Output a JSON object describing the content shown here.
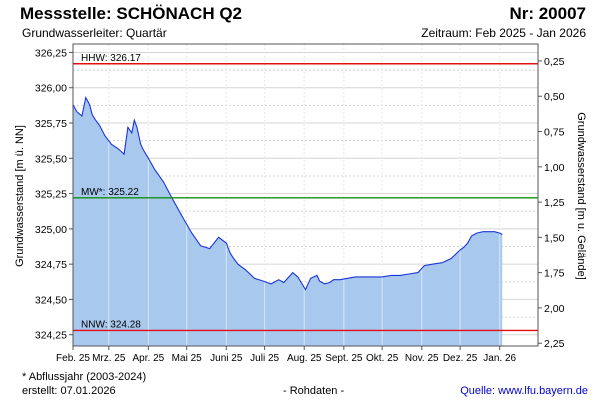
{
  "header": {
    "title": "Messstelle: SCHÖNACH Q2",
    "number": "Nr: 20007",
    "aquifer": "Grundwasserleiter: Quartär",
    "period": "Zeitraum: Feb 2025 - Jan 2026"
  },
  "footer": {
    "note": "* Abflussjahr (2003-2024)",
    "created": "erstellt:  07.01.2026",
    "raw": "- Rohdaten -",
    "source": "Quelle: www.lfu.bayern.de"
  },
  "colors": {
    "area": "#a8c8ee",
    "line": "#1a35d8",
    "hhw": "#e01010",
    "mw": "#119011",
    "nnw": "#e01010",
    "grid": "#d4d4d4"
  },
  "chart_data": {
    "type": "area",
    "ylabel": "Grundwasserstand [m ü. NN]",
    "y2label": "Grundwasserstand [m u. Gelände]",
    "ylim": [
      324.17,
      326.31
    ],
    "yticks": [
      "326,25",
      "326,00",
      "325,75",
      "325,50",
      "325,25",
      "325,00",
      "324,75",
      "324,50",
      "324,25"
    ],
    "ytick_values": [
      326.25,
      326.0,
      325.75,
      325.5,
      325.25,
      325.0,
      324.75,
      324.5,
      324.25
    ],
    "y2ticks": [
      "0,25",
      "0,50",
      "0,75",
      "1,00",
      "1,25",
      "1,50",
      "1,75",
      "2,00",
      "2,25"
    ],
    "xlim": [
      "2025-02-01",
      "2026-01-31"
    ],
    "xticks": [
      "Feb. 25",
      "Mrz. 25",
      "Apr. 25",
      "Mai 25",
      "Juni 25",
      "Juli 25",
      "Aug. 25",
      "Sept. 25",
      "Okt. 25",
      "Nov. 25",
      "Dez. 25",
      "Jan. 26"
    ],
    "xtick_dates": [
      "2025-02-01",
      "2025-03-01",
      "2025-04-01",
      "2025-05-01",
      "2025-06-01",
      "2025-07-01",
      "2025-08-01",
      "2025-09-01",
      "2025-10-01",
      "2025-11-01",
      "2025-12-01",
      "2026-01-01"
    ],
    "grid": true,
    "reference_lines": [
      {
        "key": "hhw",
        "label": "HHW: 326.17",
        "value": 326.17
      },
      {
        "key": "mw",
        "label": "MW*: 325.22",
        "value": 325.22
      },
      {
        "key": "nnw",
        "label": "NNW: 324.28",
        "value": 324.28
      }
    ],
    "series": [
      {
        "x": [
          "2025-02-01",
          "2025-02-04",
          "2025-02-08",
          "2025-02-11",
          "2025-02-14",
          "2025-02-16",
          "2025-02-18",
          "2025-02-22",
          "2025-02-26",
          "2025-03-03",
          "2025-03-08",
          "2025-03-13",
          "2025-03-16",
          "2025-03-19",
          "2025-03-21",
          "2025-03-23",
          "2025-03-26",
          "2025-03-28",
          "2025-04-01",
          "2025-04-06",
          "2025-04-13",
          "2025-04-20",
          "2025-04-28",
          "2025-05-05",
          "2025-05-12",
          "2025-05-19",
          "2025-05-26",
          "2025-06-01",
          "2025-06-04",
          "2025-06-06",
          "2025-06-10",
          "2025-06-16",
          "2025-06-23",
          "2025-06-30",
          "2025-07-06",
          "2025-07-12",
          "2025-07-16",
          "2025-07-20",
          "2025-07-23",
          "2025-07-27",
          "2025-08-02",
          "2025-08-06",
          "2025-08-11",
          "2025-08-13",
          "2025-08-17",
          "2025-08-21",
          "2025-08-24",
          "2025-08-29",
          "2025-09-04",
          "2025-09-10",
          "2025-09-17",
          "2025-09-24",
          "2025-10-01",
          "2025-10-08",
          "2025-10-15",
          "2025-10-22",
          "2025-10-29",
          "2025-11-03",
          "2025-11-10",
          "2025-11-17",
          "2025-11-24",
          "2025-12-01",
          "2025-12-04",
          "2025-12-07",
          "2025-12-10",
          "2025-12-14",
          "2025-12-19",
          "2025-12-24",
          "2025-12-28",
          "2026-01-01",
          "2026-01-03"
        ],
        "y": [
          325.88,
          325.83,
          325.8,
          325.93,
          325.88,
          325.81,
          325.78,
          325.73,
          325.66,
          325.6,
          325.57,
          325.53,
          325.72,
          325.68,
          325.77,
          325.72,
          325.6,
          325.56,
          325.5,
          325.42,
          325.33,
          325.21,
          325.08,
          324.97,
          324.88,
          324.86,
          324.94,
          324.9,
          324.83,
          324.8,
          324.75,
          324.71,
          324.65,
          324.63,
          324.61,
          324.64,
          324.62,
          324.66,
          324.69,
          324.66,
          324.57,
          324.65,
          324.67,
          324.63,
          324.61,
          324.62,
          324.64,
          324.64,
          324.65,
          324.66,
          324.66,
          324.66,
          324.66,
          324.67,
          324.67,
          324.68,
          324.69,
          324.74,
          324.75,
          324.76,
          324.79,
          324.85,
          324.87,
          324.9,
          324.95,
          324.97,
          324.98,
          324.98,
          324.98,
          324.97,
          324.96
        ]
      }
    ]
  }
}
